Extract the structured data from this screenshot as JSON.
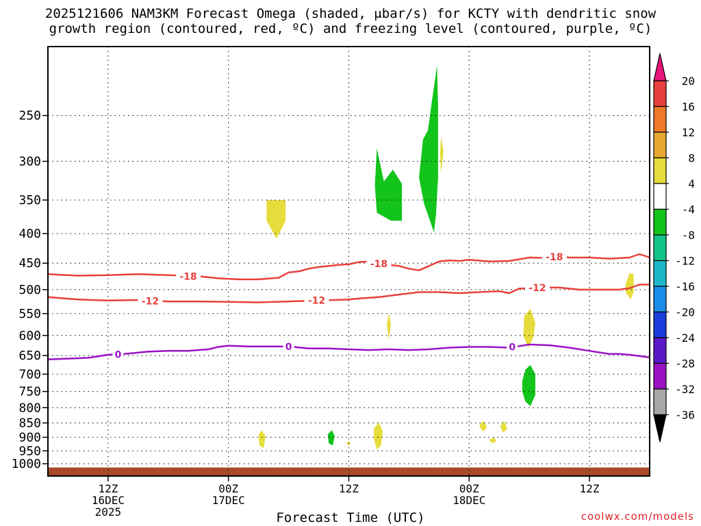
{
  "chart_data": {
    "type": "heatmap",
    "title_line1": "2025121606 NAM3KM Forecast Omega (shaded, μbar/s) for KCTY with dendritic snow",
    "title_line2": "growth region (contoured, red, ºC) and freezing level (contoured, purple, ºC)",
    "xlabel": "Forecast Time (UTC)",
    "credit": "coolwx.com/models",
    "x_unit": "hours since 2025-12-16 06Z",
    "xlim": [
      0,
      60
    ],
    "y_unit": "hPa",
    "ylim": [
      1050,
      190
    ],
    "y_scale": "log-pressure",
    "yticks": [
      250,
      300,
      350,
      400,
      450,
      500,
      550,
      600,
      650,
      700,
      750,
      800,
      850,
      900,
      950,
      1000
    ],
    "xticks": [
      {
        "x": 6,
        "lines": [
          "12Z",
          "16DEC",
          "2025"
        ]
      },
      {
        "x": 18,
        "lines": [
          "00Z",
          "17DEC"
        ]
      },
      {
        "x": 30,
        "lines": [
          "12Z"
        ]
      },
      {
        "x": 42,
        "lines": [
          "00Z",
          "18DEC"
        ]
      },
      {
        "x": 54,
        "lines": [
          "12Z"
        ]
      }
    ],
    "grid": true,
    "colorbar": {
      "levels": [
        20,
        16,
        12,
        8,
        4,
        -4,
        -8,
        -12,
        -16,
        -20,
        -24,
        -28,
        -32,
        -36
      ],
      "colors": [
        "#e8157a",
        "#e8403c",
        "#ee7a28",
        "#e8a830",
        "#e6dc3c",
        "#ffffff",
        "#13c41b",
        "#13c48a",
        "#1ab8c8",
        "#1a8ee8",
        "#1a3cdc",
        "#5a18c8",
        "#9a12c4",
        "#a8a8a8",
        "#000000"
      ]
    },
    "series": [
      {
        "name": "-18",
        "color": "#e8403c",
        "x": [
          0,
          3,
          6,
          9,
          12,
          15,
          17,
          19,
          21,
          23,
          24,
          25,
          26,
          27,
          29,
          30,
          31,
          32,
          33,
          35,
          36,
          37,
          38,
          39,
          40,
          41,
          42,
          44,
          46,
          48,
          50,
          51,
          52,
          54,
          56,
          58,
          59,
          60
        ],
        "y": [
          470,
          473,
          472,
          470,
          472,
          474,
          478,
          480,
          480,
          477,
          467,
          465,
          460,
          457,
          453,
          452,
          448,
          447,
          451,
          455,
          460,
          463,
          455,
          447,
          445,
          446,
          444,
          447,
          446,
          440,
          441,
          438,
          440,
          440,
          442,
          440,
          434,
          440
        ],
        "labels": [
          {
            "x": 14,
            "y": 474
          },
          {
            "x": 33,
            "y": 451
          },
          {
            "x": 50.5,
            "y": 439
          }
        ]
      },
      {
        "name": "-12",
        "color": "#e8403c",
        "x": [
          0,
          3,
          6,
          9,
          12,
          15,
          18,
          21,
          24,
          27,
          30,
          31,
          33,
          35,
          37,
          39,
          41,
          43,
          45,
          46,
          47,
          49,
          51,
          53,
          55,
          57,
          58,
          59,
          60
        ],
        "y": [
          515,
          520,
          522,
          521,
          524,
          524,
          525,
          526,
          524,
          522,
          520,
          518,
          515,
          510,
          505,
          505,
          507,
          505,
          503,
          507,
          498,
          496,
          496,
          500,
          500,
          500,
          497,
          490,
          490
        ],
        "labels": [
          {
            "x": 10.2,
            "y": 523
          },
          {
            "x": 26.8,
            "y": 522
          },
          {
            "x": 48.8,
            "y": 496
          }
        ]
      },
      {
        "name": "0",
        "color": "#9a12c4",
        "x": [
          0,
          2,
          4,
          6,
          8,
          10,
          12,
          14,
          16,
          17,
          18,
          20,
          22,
          24,
          26,
          28,
          30,
          32,
          34,
          36,
          38,
          40,
          42,
          44,
          46,
          48,
          50,
          52,
          54,
          56,
          57,
          58,
          60
        ],
        "y": [
          660,
          658,
          656,
          648,
          645,
          640,
          638,
          638,
          634,
          628,
          625,
          627,
          627,
          627,
          632,
          632,
          634,
          636,
          634,
          636,
          634,
          630,
          628,
          628,
          630,
          622,
          624,
          630,
          638,
          646,
          646,
          648,
          655
        ],
        "labels": [
          {
            "x": 7,
            "y": 647
          },
          {
            "x": 24,
            "y": 627
          },
          {
            "x": 46.3,
            "y": 628
          }
        ]
      }
    ],
    "omega_areas": [
      {
        "color": "#e6dc3c",
        "points": [
          [
            21.8,
            350
          ],
          [
            23.7,
            350
          ],
          [
            23.7,
            380
          ],
          [
            22.8,
            408
          ],
          [
            21.8,
            380
          ]
        ]
      },
      {
        "color": "#13c41b",
        "points": [
          [
            32.8,
            285
          ],
          [
            33.5,
            325
          ],
          [
            34.4,
            310
          ],
          [
            35.3,
            328
          ],
          [
            35.3,
            380
          ],
          [
            34.2,
            380
          ],
          [
            32.8,
            368
          ],
          [
            32.6,
            330
          ]
        ]
      },
      {
        "color": "#13c41b",
        "points": [
          [
            37.4,
            275
          ],
          [
            37.9,
            265
          ],
          [
            38.3,
            235
          ],
          [
            38.8,
            205
          ],
          [
            38.9,
            240
          ],
          [
            38.9,
            320
          ],
          [
            38.7,
            370
          ],
          [
            38.5,
            398
          ],
          [
            37.5,
            355
          ],
          [
            37.0,
            320
          ]
        ]
      },
      {
        "color": "#e6dc3c",
        "points": [
          [
            39.2,
            272
          ],
          [
            39.45,
            288
          ],
          [
            39.2,
            315
          ],
          [
            39.1,
            290
          ]
        ]
      },
      {
        "color": "#e6dc3c",
        "points": [
          [
            34.0,
            548
          ],
          [
            34.2,
            575
          ],
          [
            34.0,
            610
          ],
          [
            33.8,
            575
          ]
        ]
      },
      {
        "color": "#e6dc3c",
        "points": [
          [
            47.5,
            555
          ],
          [
            48.1,
            540
          ],
          [
            48.6,
            570
          ],
          [
            48.4,
            605
          ],
          [
            47.9,
            630
          ],
          [
            47.4,
            600
          ]
        ]
      },
      {
        "color": "#13c41b",
        "points": [
          [
            47.3,
            720
          ],
          [
            47.6,
            688
          ],
          [
            48.1,
            675
          ],
          [
            48.6,
            700
          ],
          [
            48.6,
            760
          ],
          [
            48.1,
            795
          ],
          [
            47.6,
            780
          ],
          [
            47.3,
            750
          ]
        ]
      },
      {
        "color": "#e6dc3c",
        "points": [
          [
            57.6,
            490
          ],
          [
            58.0,
            468
          ],
          [
            58.4,
            470
          ],
          [
            58.4,
            505
          ],
          [
            58.1,
            520
          ],
          [
            57.6,
            505
          ]
        ]
      },
      {
        "color": "#e6dc3c",
        "points": [
          [
            21.0,
            893
          ],
          [
            21.3,
            875
          ],
          [
            21.7,
            895
          ],
          [
            21.5,
            940
          ],
          [
            21.1,
            930
          ]
        ]
      },
      {
        "color": "#13c41b",
        "points": [
          [
            27.9,
            890
          ],
          [
            28.3,
            875
          ],
          [
            28.6,
            895
          ],
          [
            28.4,
            930
          ],
          [
            28.0,
            922
          ]
        ]
      },
      {
        "color": "#e6dc3c",
        "points": [
          [
            29.9,
            915
          ],
          [
            30.2,
            920
          ],
          [
            30.0,
            930
          ],
          [
            29.8,
            922
          ]
        ]
      },
      {
        "color": "#e6dc3c",
        "points": [
          [
            32.5,
            870
          ],
          [
            33.0,
            848
          ],
          [
            33.4,
            880
          ],
          [
            33.2,
            930
          ],
          [
            32.8,
            945
          ],
          [
            32.5,
            905
          ]
        ]
      },
      {
        "color": "#e6dc3c",
        "points": [
          [
            43.0,
            860
          ],
          [
            43.4,
            843
          ],
          [
            43.8,
            865
          ],
          [
            43.4,
            880
          ]
        ]
      },
      {
        "color": "#e6dc3c",
        "points": [
          [
            44.0,
            910
          ],
          [
            44.5,
            900
          ],
          [
            44.7,
            915
          ],
          [
            44.3,
            922
          ]
        ]
      },
      {
        "color": "#e6dc3c",
        "points": [
          [
            45.1,
            862
          ],
          [
            45.5,
            843
          ],
          [
            45.8,
            870
          ],
          [
            45.4,
            884
          ]
        ]
      }
    ],
    "terrain": {
      "color": "#a84a2a",
      "pressure": 1015
    }
  }
}
